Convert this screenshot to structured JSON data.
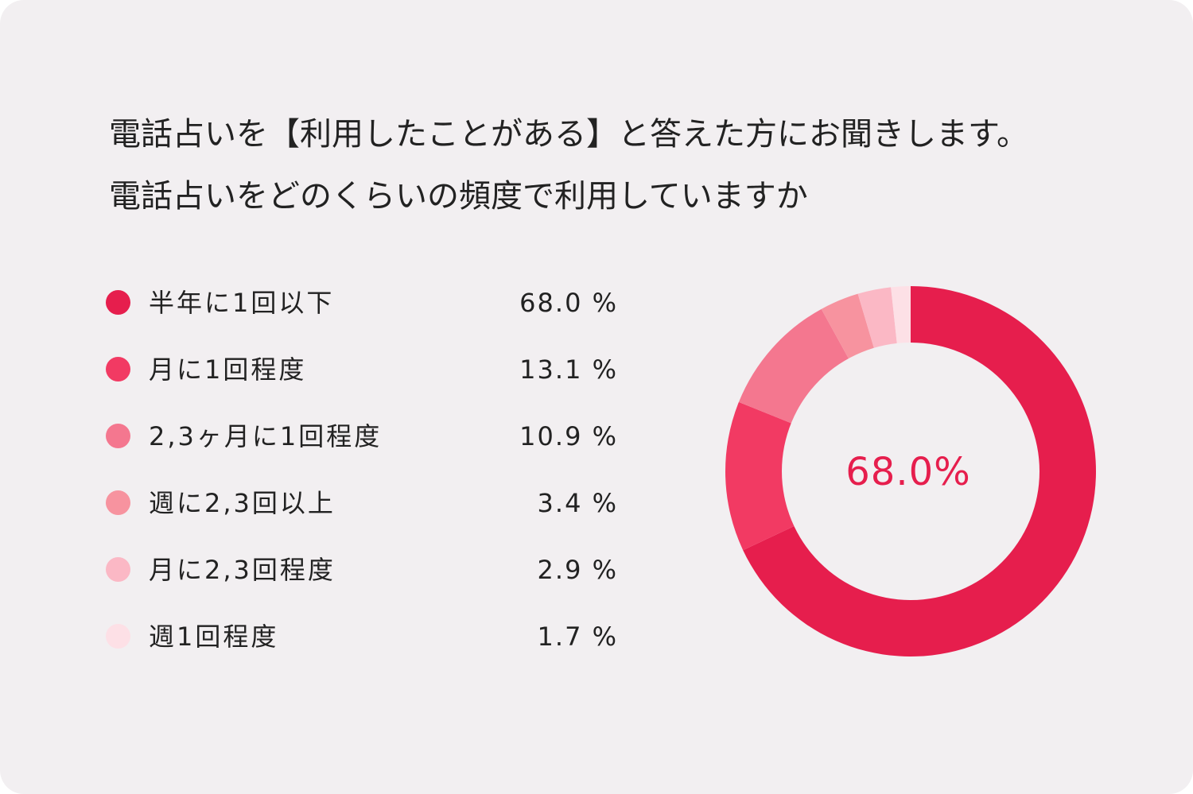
{
  "title": {
    "line1": "電話占いを【利用したことがある】と答えた方にお聞きします。",
    "line2": "電話占いをどのくらいの頻度で利用していますか"
  },
  "center_text": "68.0%",
  "colors": {
    "background": "#f2eff1",
    "accent": "#e61e4d"
  },
  "chart_data": {
    "type": "pie",
    "style": "donut",
    "title": "",
    "unit": "%",
    "categories": [
      "半年に1回以下",
      "月に1回程度",
      "2,3ヶ月に1回程度",
      "週に2,3回以上",
      "月に2,3回程度",
      "週1回程度"
    ],
    "values": [
      68.0,
      13.1,
      10.9,
      3.4,
      2.9,
      1.7
    ],
    "display_values": [
      "68.0 %",
      "13.1 %",
      "10.9 %",
      "3.4 %",
      "2.9 %",
      "1.7 %"
    ],
    "colors": [
      "#e61e4d",
      "#f23a63",
      "#f4778f",
      "#f7939f",
      "#fbb8c5",
      "#fde0e6"
    ],
    "legend_placement": "left"
  }
}
